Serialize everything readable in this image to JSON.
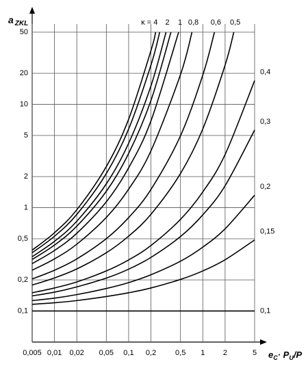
{
  "chart_data": {
    "type": "line",
    "log_x": true,
    "log_y": true,
    "grid": true,
    "color": "#000000",
    "ylabel": "a",
    "ylabel_sub": "ZKL",
    "xlabel_parts": [
      "e",
      "C",
      "· P",
      "U",
      "/P"
    ],
    "xlim": [
      0.005,
      5
    ],
    "ylim": [
      0.05,
      50
    ],
    "xticks": [
      {
        "value": 0.005,
        "label": "0,005"
      },
      {
        "value": 0.01,
        "label": "0,01"
      },
      {
        "value": 0.02,
        "label": "0,02"
      },
      {
        "value": 0.05,
        "label": "0,05"
      },
      {
        "value": 0.1,
        "label": "0,1"
      },
      {
        "value": 0.2,
        "label": "0,2"
      },
      {
        "value": 0.5,
        "label": "0,5"
      },
      1,
      2,
      5
    ],
    "yticks": [
      {
        "value": 0.1,
        "label": "0,1"
      },
      {
        "value": 0.2,
        "label": "0,2"
      },
      {
        "value": 0.5,
        "label": "0,5"
      },
      1,
      2,
      5,
      10,
      20,
      50
    ],
    "series": [
      {
        "name": "κ = 4",
        "x": [
          0.005,
          0.01,
          0.02,
          0.05,
          0.1,
          0.2,
          0.2313
        ],
        "values": [
          0.388,
          0.572,
          0.955,
          2.5,
          7.19,
          33.2,
          50
        ]
      },
      {
        "x": [
          0.005,
          0.01,
          0.02,
          0.05,
          0.1,
          0.2,
          0.2624
        ],
        "values": [
          0.366,
          0.529,
          0.86,
          2.14,
          5.77,
          24.0,
          50
        ]
      },
      {
        "name": "2",
        "x": [
          0.005,
          0.01,
          0.02,
          0.05,
          0.1,
          0.2,
          0.3193
        ],
        "values": [
          0.335,
          0.472,
          0.739,
          1.7,
          4.2,
          15.1,
          50
        ]
      },
      {
        "x": [
          0.005,
          0.01,
          0.02,
          0.05,
          0.1,
          0.2,
          0.3722
        ],
        "values": [
          0.315,
          0.434,
          0.662,
          1.44,
          3.35,
          10.9,
          50
        ]
      },
      {
        "name": "1",
        "x": [
          0.005,
          0.01,
          0.02,
          0.05,
          0.1,
          0.2,
          0.4727
        ],
        "values": [
          0.287,
          0.385,
          0.565,
          1.14,
          2.43,
          6.92,
          50
        ]
      },
      {
        "name": "0,8",
        "x": [
          0.005,
          0.01,
          0.02,
          0.05,
          0.1,
          0.2,
          0.5,
          0.715
        ],
        "values": [
          0.248,
          0.319,
          0.443,
          0.804,
          1.51,
          3.55,
          19.4,
          50
        ]
      },
      {
        "name": "0,6",
        "x": [
          0.005,
          0.01,
          0.02,
          0.05,
          0.1,
          0.2,
          0.5,
          1,
          1.437
        ],
        "values": [
          0.204,
          0.248,
          0.319,
          0.501,
          0.801,
          1.5,
          4.96,
          19.2,
          50
        ]
      },
      {
        "name": "0,5",
        "x": [
          0.005,
          0.01,
          0.02,
          0.05,
          0.1,
          0.2,
          0.5,
          1,
          2,
          2.621
        ],
        "values": [
          0.178,
          0.209,
          0.255,
          0.366,
          0.53,
          0.862,
          2.14,
          5.78,
          24.0,
          50
        ]
      },
      {
        "name": "0,4",
        "x": [
          0.005,
          0.01,
          0.02,
          0.05,
          0.1,
          0.2,
          0.5,
          1,
          2,
          5
        ],
        "values": [
          0.15,
          0.167,
          0.191,
          0.244,
          0.312,
          0.43,
          0.77,
          1.42,
          3.27,
          17.0
        ]
      },
      {
        "name": "0,3",
        "x": [
          0.005,
          0.01,
          0.02,
          0.05,
          0.1,
          0.2,
          0.5,
          1,
          2,
          5
        ],
        "values": [
          0.14,
          0.152,
          0.171,
          0.208,
          0.254,
          0.33,
          0.525,
          0.852,
          1.63,
          5.64
        ]
      },
      {
        "name": "0,2",
        "x": [
          0.005,
          0.01,
          0.02,
          0.05,
          0.1,
          0.2,
          0.5,
          1,
          2,
          5
        ],
        "values": [
          0.126,
          0.133,
          0.144,
          0.165,
          0.188,
          0.224,
          0.303,
          0.415,
          0.624,
          1.32
        ]
      },
      {
        "name": "0,15",
        "x": [
          0.005,
          0.01,
          0.02,
          0.05,
          0.1,
          0.2,
          0.5,
          1,
          2,
          5
        ],
        "values": [
          0.116,
          0.12,
          0.126,
          0.138,
          0.15,
          0.167,
          0.202,
          0.244,
          0.313,
          0.487
        ]
      },
      {
        "name": "0,1",
        "bold": true,
        "x": [
          0.005,
          5
        ],
        "values": [
          0.1,
          0.1
        ]
      }
    ]
  }
}
